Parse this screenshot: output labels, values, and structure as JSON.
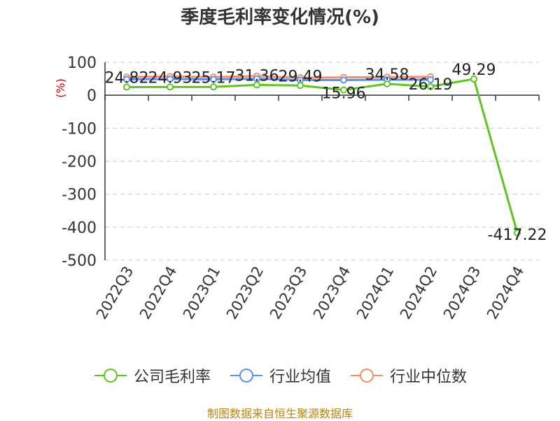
{
  "chart_data": {
    "type": "line",
    "title": "季度毛利率变化情况(%)",
    "ylabel": "(%)",
    "xlabel": "",
    "categories": [
      "2022Q3",
      "2022Q4",
      "2023Q1",
      "2023Q2",
      "2023Q3",
      "2023Q4",
      "2024Q1",
      "2024Q2",
      "2024Q3",
      "2024Q4"
    ],
    "yticks": [
      "100",
      "0",
      "-100",
      "-200",
      "-300",
      "-400",
      "-500"
    ],
    "ylim": [
      -500,
      100
    ],
    "grid": true,
    "legend_position": "bottom",
    "series": [
      {
        "name": "公司毛利率",
        "color": "#5ec421",
        "values": [
          24.82,
          24.93,
          25.17,
          31.36,
          29.49,
          15.96,
          34.58,
          26.19,
          49.29,
          -417.22
        ],
        "labels": [
          "24.82",
          "24.93",
          "25.17",
          "31.36",
          "29.49",
          "15.96",
          "34.58",
          "26.19",
          "49.29",
          "-417.22"
        ]
      },
      {
        "name": "行业均值",
        "color": "#5b8ff9",
        "values": [
          48,
          49,
          48,
          50,
          46,
          46,
          47,
          47,
          null,
          null
        ]
      },
      {
        "name": "行业中位数",
        "color": "#f0916a",
        "values": [
          55,
          57,
          55,
          58,
          53,
          54,
          55,
          56,
          null,
          null
        ]
      }
    ]
  },
  "source": "制图数据来自恒生聚源数据库"
}
